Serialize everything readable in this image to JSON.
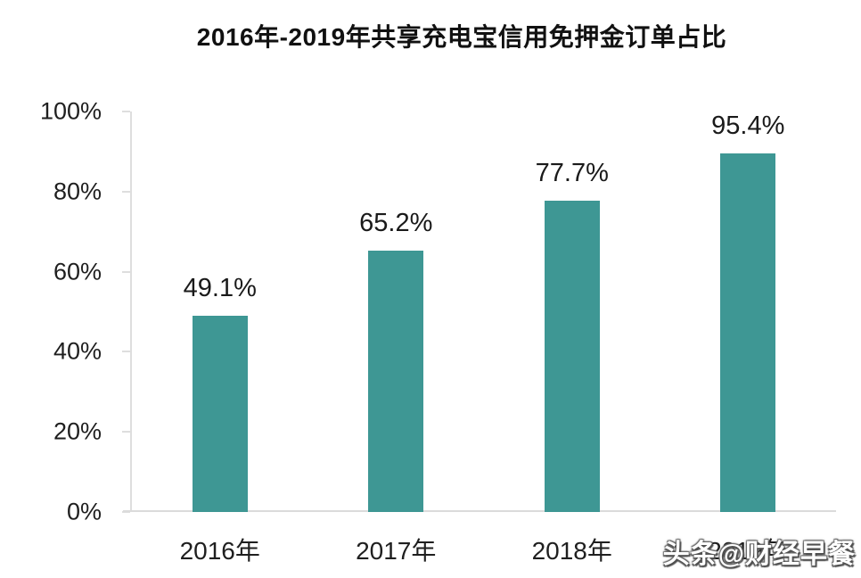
{
  "title": "2016年-2019年共享充电宝信用免押金订单占比",
  "watermark": "头条@财经早餐",
  "colors": {
    "bar": "#3e9794",
    "axis": "#dedede",
    "text": "#1f1f1f"
  },
  "chart_data": {
    "type": "bar",
    "title": "2016年-2019年共享充电宝信用免押金订单占比",
    "categories": [
      "2016年",
      "2017年",
      "2018年",
      "2019年"
    ],
    "values": [
      49.1,
      65.2,
      77.7,
      95.4
    ],
    "value_labels": [
      "49.1%",
      "65.2%",
      "77.7%",
      "95.4%"
    ],
    "xlabel": "",
    "ylabel": "",
    "ylim": [
      0,
      100
    ],
    "yticks": [
      0,
      20,
      40,
      60,
      80,
      100
    ],
    "ytick_labels": [
      "0%",
      "20%",
      "40%",
      "60%",
      "80%",
      "100%"
    ],
    "grid": false,
    "legend": null,
    "bar_color": "#3e9794"
  }
}
